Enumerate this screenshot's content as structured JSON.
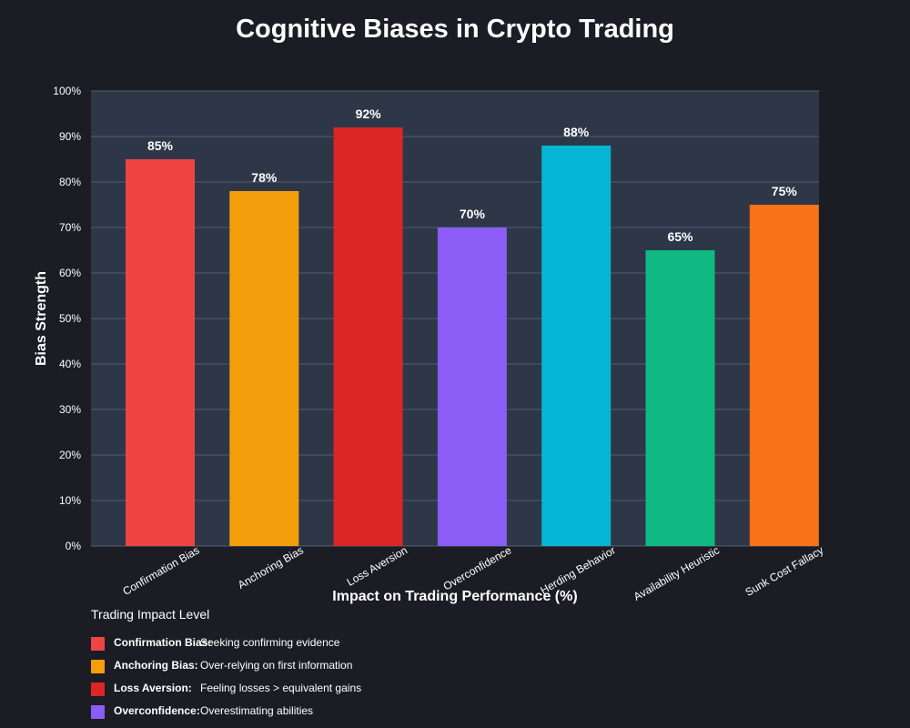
{
  "colors": {
    "background": "#1c1c24",
    "plot_area": "#2e3748",
    "grid": "#4a5568"
  },
  "chart_data": {
    "type": "bar",
    "title": "Cognitive Biases in Crypto Trading",
    "xlabel": "Impact on Trading Performance (%)",
    "ylabel": "Bias Strength",
    "ylim": [
      0,
      100
    ],
    "y_ticks": [
      "0%",
      "10%",
      "20%",
      "30%",
      "40%",
      "50%",
      "60%",
      "70%",
      "80%",
      "90%",
      "100%"
    ],
    "grid": true,
    "categories": [
      "Confirmation Bias",
      "Anchoring Bias",
      "Loss Aversion",
      "Overconfidence",
      "Herding Behavior",
      "Availability Heuristic",
      "Sunk Cost Fallacy"
    ],
    "values": [
      85,
      78,
      92,
      70,
      88,
      65,
      75
    ],
    "value_labels": [
      "85%",
      "78%",
      "92%",
      "70%",
      "88%",
      "65%",
      "75%"
    ],
    "bar_colors": [
      "#ef4444",
      "#f59e0b",
      "#dc2626",
      "#8b5cf6",
      "#06b6d4",
      "#10b981",
      "#f97316"
    ],
    "legend": {
      "title": "Trading Impact Level",
      "placement": "bottom-left",
      "items": [
        {
          "name": "Confirmation Bias:",
          "description": "Seeking confirming evidence",
          "color": "#ef4444"
        },
        {
          "name": "Anchoring Bias:",
          "description": "Over-relying on first information",
          "color": "#f59e0b"
        },
        {
          "name": "Loss Aversion:",
          "description": "Feeling losses > equivalent gains",
          "color": "#dc2626"
        },
        {
          "name": "Overconfidence:",
          "description": "Overestimating abilities",
          "color": "#8b5cf6"
        }
      ]
    }
  }
}
